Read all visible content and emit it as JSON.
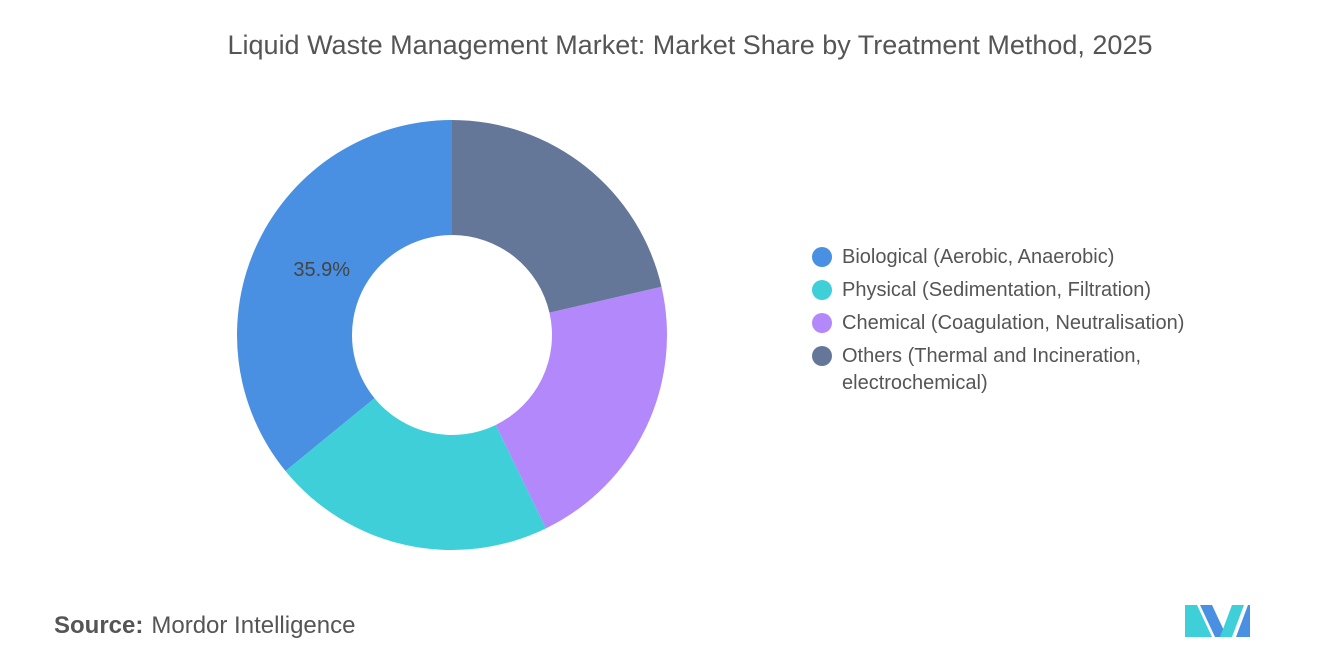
{
  "chart_data": {
    "type": "donut",
    "title": "Liquid Waste Management Market: Market Share by Treatment Method, 2025",
    "categories": [
      "Biological (Aerobic, Anaerobic)",
      "Physical (Sedimentation, Filtration)",
      "Chemical (Coagulation, Neutralisation)",
      "Others (Thermal and Incineration, electrochemical)"
    ],
    "values": [
      35.9,
      21.3,
      21.4,
      21.4
    ],
    "value_labels": [
      "35.9%",
      null,
      null,
      null
    ],
    "colors": [
      "#4a90e2",
      "#3ecfd9",
      "#b388fb",
      "#657799"
    ],
    "source_label": "Source:",
    "source": "Mordor Intelligence"
  }
}
